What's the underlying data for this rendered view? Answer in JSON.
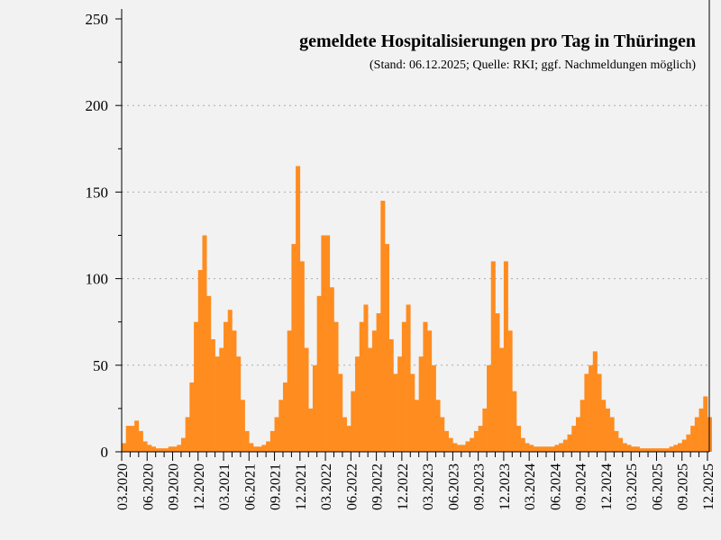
{
  "chart_data": {
    "type": "bar",
    "title": "gemeldete Hospitalisierungen pro Tag in Thüringen",
    "subtitle": "(Stand: 06.12.2025; Quelle: RKI; ggf. Nachmeldungen möglich)",
    "xlabel": "",
    "ylabel": "",
    "ylim": [
      0,
      250
    ],
    "yticks": [
      "0",
      "50",
      "100",
      "150",
      "200",
      "250"
    ],
    "xticks": [
      "03.2020",
      "06.2020",
      "09.2020",
      "12.2020",
      "03.2021",
      "06.2021",
      "09.2021",
      "12.2021",
      "03.2022",
      "06.2022",
      "09.2022",
      "12.2022",
      "03.2023",
      "06.2023",
      "09.2023",
      "12.2023",
      "03.2024",
      "06.2024",
      "09.2024",
      "12.2024",
      "03.2025",
      "06.2025",
      "09.2025",
      "12.2025"
    ],
    "grid": "horizontal dotted",
    "color": "#ff8c1f",
    "values_by_half_month": [
      [
        "03.2020",
        [
          5,
          15
        ]
      ],
      [
        "04.2020",
        [
          15,
          18
        ]
      ],
      [
        "05.2020",
        [
          12,
          6
        ]
      ],
      [
        "06.2020",
        [
          4,
          3
        ]
      ],
      [
        "07.2020",
        [
          2,
          2
        ]
      ],
      [
        "08.2020",
        [
          2,
          3
        ]
      ],
      [
        "09.2020",
        [
          3,
          4
        ]
      ],
      [
        "10.2020",
        [
          8,
          20
        ]
      ],
      [
        "11.2020",
        [
          40,
          75
        ]
      ],
      [
        "12.2020",
        [
          105,
          125
        ]
      ],
      [
        "01.2021",
        [
          90,
          65
        ]
      ],
      [
        "02.2021",
        [
          55,
          60
        ]
      ],
      [
        "03.2021",
        [
          75,
          82
        ]
      ],
      [
        "04.2021",
        [
          70,
          55
        ]
      ],
      [
        "05.2021",
        [
          30,
          12
        ]
      ],
      [
        "06.2021",
        [
          5,
          3
        ]
      ],
      [
        "07.2021",
        [
          3,
          4
        ]
      ],
      [
        "08.2021",
        [
          6,
          12
        ]
      ],
      [
        "09.2021",
        [
          20,
          30
        ]
      ],
      [
        "10.2021",
        [
          40,
          70
        ]
      ],
      [
        "11.2021",
        [
          120,
          165
        ]
      ],
      [
        "12.2021",
        [
          110,
          60
        ]
      ],
      [
        "01.2022",
        [
          25,
          50
        ]
      ],
      [
        "02.2022",
        [
          90,
          125
        ]
      ],
      [
        "03.2022",
        [
          125,
          95
        ]
      ],
      [
        "04.2022",
        [
          75,
          45
        ]
      ],
      [
        "05.2022",
        [
          20,
          15
        ]
      ],
      [
        "06.2022",
        [
          35,
          55
        ]
      ],
      [
        "07.2022",
        [
          75,
          85
        ]
      ],
      [
        "08.2022",
        [
          60,
          70
        ]
      ],
      [
        "09.2022",
        [
          80,
          145
        ]
      ],
      [
        "10.2022",
        [
          120,
          65
        ]
      ],
      [
        "11.2022",
        [
          45,
          55
        ]
      ],
      [
        "12.2022",
        [
          75,
          85
        ]
      ],
      [
        "01.2023",
        [
          45,
          30
        ]
      ],
      [
        "02.2023",
        [
          55,
          75
        ]
      ],
      [
        "03.2023",
        [
          70,
          50
        ]
      ],
      [
        "04.2023",
        [
          30,
          20
        ]
      ],
      [
        "05.2023",
        [
          12,
          8
        ]
      ],
      [
        "06.2023",
        [
          5,
          4
        ]
      ],
      [
        "07.2023",
        [
          4,
          6
        ]
      ],
      [
        "08.2023",
        [
          8,
          12
        ]
      ],
      [
        "09.2023",
        [
          15,
          25
        ]
      ],
      [
        "10.2023",
        [
          50,
          110
        ]
      ],
      [
        "11.2023",
        [
          80,
          60
        ]
      ],
      [
        "12.2023",
        [
          110,
          70
        ]
      ],
      [
        "01.2024",
        [
          35,
          15
        ]
      ],
      [
        "02.2024",
        [
          8,
          5
        ]
      ],
      [
        "03.2024",
        [
          4,
          3
        ]
      ],
      [
        "04.2024",
        [
          3,
          3
        ]
      ],
      [
        "05.2024",
        [
          3,
          3
        ]
      ],
      [
        "06.2024",
        [
          4,
          5
        ]
      ],
      [
        "07.2024",
        [
          7,
          10
        ]
      ],
      [
        "08.2024",
        [
          15,
          20
        ]
      ],
      [
        "09.2024",
        [
          30,
          45
        ]
      ],
      [
        "10.2024",
        [
          50,
          58
        ]
      ],
      [
        "11.2024",
        [
          45,
          30
        ]
      ],
      [
        "12.2024",
        [
          25,
          20
        ]
      ],
      [
        "01.2025",
        [
          12,
          8
        ]
      ],
      [
        "02.2025",
        [
          5,
          4
        ]
      ],
      [
        "03.2025",
        [
          3,
          3
        ]
      ],
      [
        "04.2025",
        [
          2,
          2
        ]
      ],
      [
        "05.2025",
        [
          2,
          2
        ]
      ],
      [
        "06.2025",
        [
          2,
          2
        ]
      ],
      [
        "07.2025",
        [
          2,
          3
        ]
      ],
      [
        "08.2025",
        [
          4,
          5
        ]
      ],
      [
        "09.2025",
        [
          7,
          10
        ]
      ],
      [
        "10.2025",
        [
          15,
          20
        ]
      ],
      [
        "11.2025",
        [
          25,
          32
        ]
      ],
      [
        "12.2025",
        [
          20
        ]
      ]
    ]
  }
}
